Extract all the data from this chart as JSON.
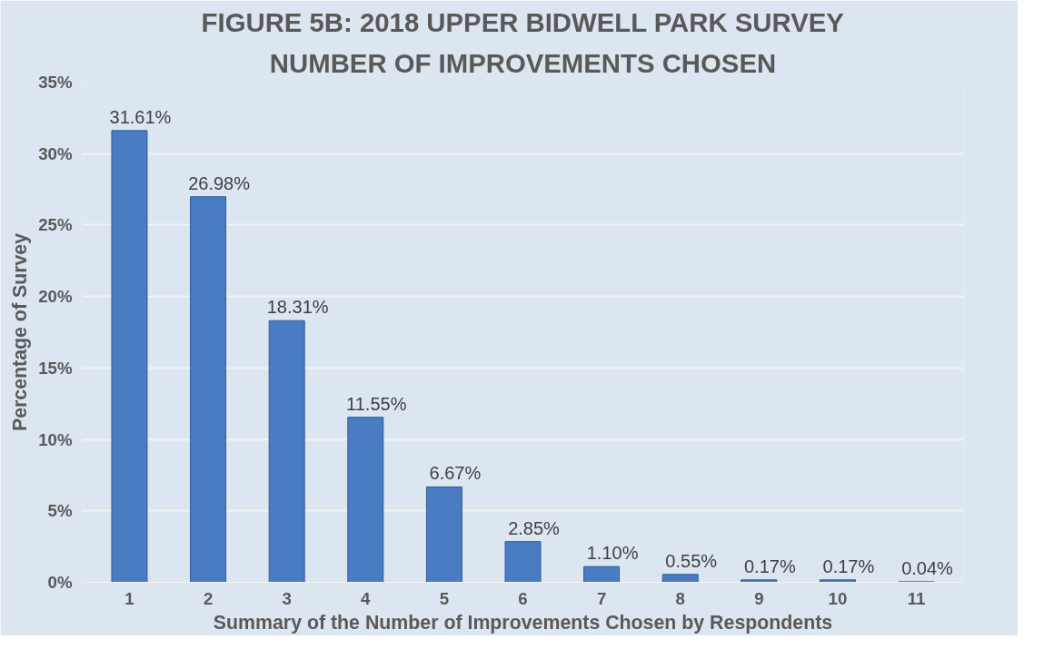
{
  "chart_data": {
    "type": "bar",
    "title": "FIGURE 5B: 2018 UPPER BIDWELL PARK SURVEY",
    "subtitle": "NUMBER OF IMPROVEMENTS CHOSEN",
    "xlabel": "Summary of the Number of Improvements Chosen by Respondents",
    "ylabel": "Percentage of Survey",
    "categories": [
      "1",
      "2",
      "3",
      "4",
      "5",
      "6",
      "7",
      "8",
      "9",
      "10",
      "11"
    ],
    "values": [
      31.61,
      26.98,
      18.31,
      11.55,
      6.67,
      2.85,
      1.1,
      0.55,
      0.17,
      0.17,
      0.04
    ],
    "value_labels": [
      "31.61%",
      "26.98%",
      "18.31%",
      "11.55%",
      "6.67%",
      "2.85%",
      "1.10%",
      "0.55%",
      "0.17%",
      "0.17%",
      "0.04%"
    ],
    "color": "#4a7cc4",
    "ylim": [
      0,
      35
    ],
    "yticks": [
      {
        "value": 0,
        "label": "0%"
      },
      {
        "value": 5,
        "label": "5%"
      },
      {
        "value": 10,
        "label": "10%"
      },
      {
        "value": 15,
        "label": "15%"
      },
      {
        "value": 20,
        "label": "20%"
      },
      {
        "value": 25,
        "label": "25%"
      },
      {
        "value": 30,
        "label": "30%"
      },
      {
        "value": 35,
        "label": "35%"
      }
    ],
    "grid": "y"
  }
}
